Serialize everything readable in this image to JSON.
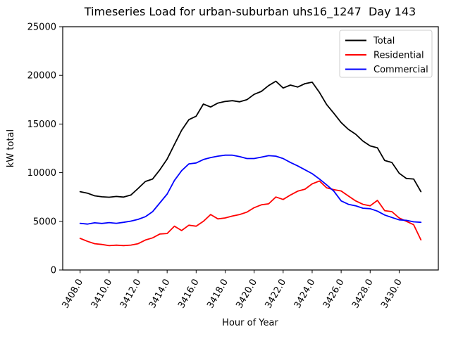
{
  "chart_data": {
    "type": "line",
    "title": "Timeseries Load for urban-suburban uhs16_1247  Day 143",
    "xlabel": "Hour of Year",
    "ylabel": "kW total",
    "xlim": [
      3406.8,
      3432.7
    ],
    "ylim": [
      0,
      25000
    ],
    "grid": false,
    "x_ticks": {
      "values": [
        3408,
        3410,
        3412,
        3414,
        3416,
        3418,
        3420,
        3422,
        3424,
        3426,
        3428,
        3430
      ],
      "labels": [
        "3408.0",
        "3410.0",
        "3412.0",
        "3414.0",
        "3416.0",
        "3418.0",
        "3420.0",
        "3422.0",
        "3424.0",
        "3426.0",
        "3428.0",
        "3430.0"
      ],
      "rotation_deg": 60
    },
    "y_ticks": {
      "values": [
        0,
        5000,
        10000,
        15000,
        20000,
        25000
      ],
      "labels": [
        "0",
        "5000",
        "10000",
        "15000",
        "20000",
        "25000"
      ]
    },
    "legend": {
      "position": "upper right",
      "entries": [
        "Total",
        "Residential",
        "Commercial"
      ]
    },
    "x": [
      3408.0,
      3408.5,
      3409.0,
      3409.5,
      3410.0,
      3410.5,
      3411.0,
      3411.5,
      3412.0,
      3412.5,
      3413.0,
      3413.5,
      3414.0,
      3414.5,
      3415.0,
      3415.5,
      3416.0,
      3416.5,
      3417.0,
      3417.5,
      3418.0,
      3418.5,
      3419.0,
      3419.5,
      3420.0,
      3420.5,
      3421.0,
      3421.5,
      3422.0,
      3422.5,
      3423.0,
      3423.5,
      3424.0,
      3424.5,
      3425.0,
      3425.5,
      3426.0,
      3426.5,
      3427.0,
      3427.5,
      3428.0,
      3428.5,
      3429.0,
      3429.5,
      3430.0,
      3430.5,
      3431.0,
      3431.5
    ],
    "series": [
      {
        "name": "Total",
        "color": "#000000",
        "values": [
          8050,
          7900,
          7620,
          7520,
          7480,
          7560,
          7490,
          7700,
          8380,
          9100,
          9350,
          10300,
          11400,
          12900,
          14350,
          15450,
          15800,
          17050,
          16750,
          17150,
          17320,
          17400,
          17280,
          17500,
          18050,
          18350,
          18950,
          19400,
          18700,
          19000,
          18800,
          19150,
          19300,
          18250,
          17000,
          16100,
          15150,
          14450,
          13950,
          13250,
          12750,
          12550,
          11250,
          11050,
          9950,
          9400,
          9350,
          8050
        ]
      },
      {
        "name": "Residential",
        "color": "#ff0000",
        "values": [
          3250,
          2950,
          2700,
          2620,
          2500,
          2550,
          2510,
          2560,
          2700,
          3080,
          3300,
          3700,
          3750,
          4500,
          4050,
          4600,
          4500,
          5000,
          5700,
          5250,
          5350,
          5550,
          5700,
          5950,
          6400,
          6700,
          6800,
          7500,
          7250,
          7700,
          8100,
          8300,
          8850,
          9150,
          8450,
          8250,
          8120,
          7600,
          7100,
          6750,
          6600,
          7150,
          6100,
          6000,
          5350,
          5000,
          4650,
          3100
        ]
      },
      {
        "name": "Commercial",
        "color": "#0000ff",
        "values": [
          4800,
          4720,
          4850,
          4780,
          4870,
          4800,
          4900,
          5020,
          5200,
          5480,
          6000,
          6900,
          7800,
          9200,
          10200,
          10900,
          11000,
          11350,
          11550,
          11700,
          11800,
          11800,
          11650,
          11450,
          11450,
          11600,
          11750,
          11700,
          11450,
          11050,
          10700,
          10300,
          9900,
          9350,
          8750,
          8100,
          7100,
          6750,
          6600,
          6350,
          6300,
          6050,
          5650,
          5400,
          5150,
          5100,
          4950,
          4900
        ]
      }
    ]
  }
}
